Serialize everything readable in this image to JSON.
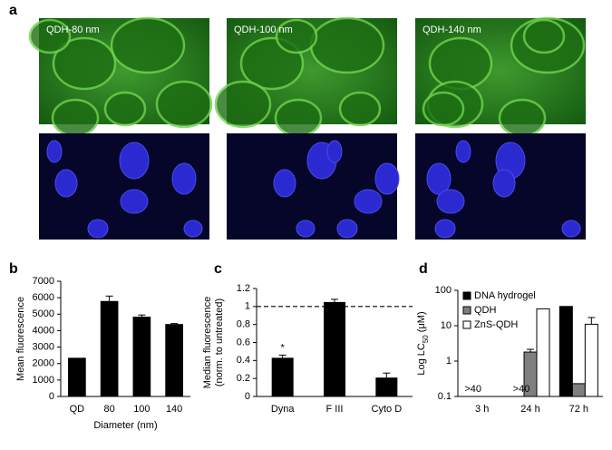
{
  "panel_labels": [
    "a",
    "b",
    "c",
    "d"
  ],
  "images": {
    "labels": [
      "QDH-80 nm",
      "QDH-100 nm",
      "QDH-140 nm"
    ]
  },
  "chart_data": [
    {
      "type": "bar",
      "ylabel": [
        "Mean fluorescence"
      ],
      "xlabel": "Diameter (nm)",
      "categories": [
        "QD",
        "80",
        "100",
        "140"
      ],
      "values": [
        2350,
        5800,
        4850,
        4400
      ],
      "errors": [
        null,
        300,
        100,
        30
      ],
      "color": "#000000",
      "ylim": [
        0,
        7000
      ],
      "yticks": [
        0,
        1000,
        2000,
        3000,
        4000,
        5000,
        6000,
        7000
      ]
    },
    {
      "type": "bar",
      "ylabel": [
        "Median fluorescence",
        "(norm. to untreated)"
      ],
      "categories": [
        "Dyna",
        "F III",
        "Cyto D"
      ],
      "values": [
        0.43,
        1.05,
        0.21
      ],
      "errors": [
        0.03,
        0.03,
        0.05
      ],
      "color": "#000000",
      "ylim": [
        0,
        1.2
      ],
      "yticks": [
        0,
        0.2,
        0.4,
        0.6,
        0.8,
        1,
        1.2
      ],
      "reference_line": 1,
      "annotations": [
        {
          "text": "*",
          "category": "Dyna"
        }
      ]
    },
    {
      "type": "grouped-bar",
      "ylabel": [
        "Log LC",
        "50",
        " (μM)"
      ],
      "log_scale": true,
      "legend": "top-left",
      "categories": [
        "3 h",
        "24 h",
        "72 h"
      ],
      "series": [
        {
          "name": "DNA hydrogel",
          "color": "#000000",
          "values": [
            null,
            null,
            35
          ],
          "errors": [
            null,
            null,
            null
          ]
        },
        {
          "name": "QDH",
          "color": "#7f7f7f",
          "values": [
            null,
            1.8,
            0.23
          ],
          "errors": [
            null,
            0.35,
            null
          ]
        },
        {
          "name": "ZnS-QDH",
          "color": "#ffffff",
          "values": [
            null,
            30,
            11
          ],
          "errors": [
            null,
            null,
            6
          ]
        }
      ],
      "ylim": [
        0.1,
        100
      ],
      "yticks": [
        0.1,
        1,
        10,
        100
      ],
      "annotations": [
        {
          "text": ">40",
          "category": "3 h"
        },
        {
          "text": ">40",
          "category": "24 h"
        }
      ]
    }
  ]
}
